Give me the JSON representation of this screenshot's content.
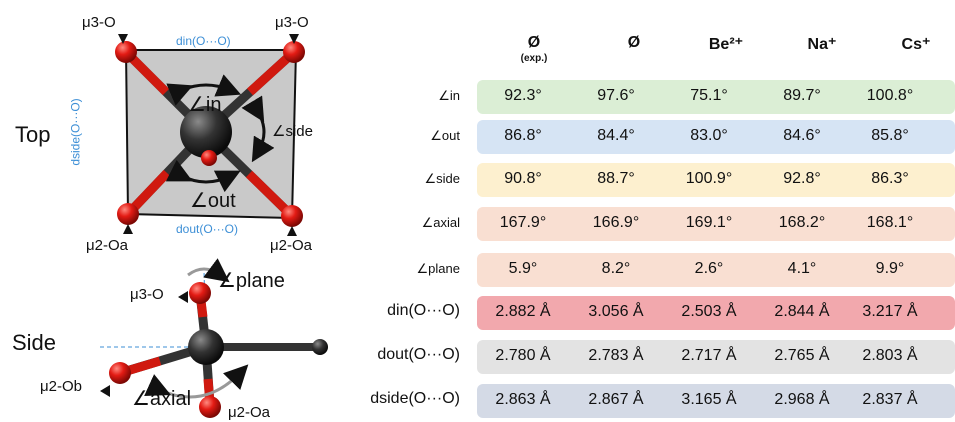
{
  "views": {
    "top": "Top",
    "side": "Side"
  },
  "top_diagram": {
    "mu3_left": "μ3-O",
    "mu3_right": "μ3-O",
    "mu2_left": "μ2-Oa",
    "mu2_right": "μ2-Oa",
    "d_in_label": "din(O···O)",
    "d_out_label": "dout(O···O)",
    "d_side_label": "dside(O···O)",
    "angle_in": "∠in",
    "angle_out": "∠out",
    "angle_side": "∠side"
  },
  "side_diagram": {
    "mu3": "μ3-O",
    "mu2b": "μ2-Ob",
    "mu2a": "μ2-Oa",
    "angle_plane": "∠plane",
    "angle_axial": "∠axial"
  },
  "table": {
    "columns": [
      {
        "label": "Ø",
        "sub": "(exp.)"
      },
      {
        "label": "Ø",
        "sub": ""
      },
      {
        "label": "Be²⁺",
        "sub": ""
      },
      {
        "label": "Na⁺",
        "sub": ""
      },
      {
        "label": "Cs⁺",
        "sub": ""
      }
    ],
    "rows": [
      {
        "label": "∠in",
        "color": "#dbeed5",
        "values": [
          "92.3°",
          "97.6°",
          "75.1°",
          "89.7°",
          "100.8°"
        ]
      },
      {
        "label": "∠out",
        "color": "#d6e4f4",
        "values": [
          "86.8°",
          "84.4°",
          "83.0°",
          "84.6°",
          "85.8°"
        ]
      },
      {
        "label": "∠side",
        "color": "#fdf0cf",
        "values": [
          "90.8°",
          "88.7°",
          "100.9°",
          "92.8°",
          "86.3°"
        ]
      },
      {
        "label": "∠axial",
        "color": "#f9dfd2",
        "values": [
          "167.9°",
          "166.9°",
          "169.1°",
          "168.2°",
          "168.1°"
        ]
      },
      {
        "label": "∠plane",
        "color": "#f9dfd2",
        "values": [
          "5.9°",
          "8.2°",
          "2.6°",
          "4.1°",
          "9.9°"
        ]
      },
      {
        "label": "din(O···O)",
        "color": "#f2a8ad",
        "values": [
          "2.882 Å",
          "3.056 Å",
          "2.503 Å",
          "2.844 Å",
          "3.217 Å"
        ]
      },
      {
        "label": "dout(O···O)",
        "color": "#e3e3e3",
        "values": [
          "2.780 Å",
          "2.783 Å",
          "2.717 Å",
          "2.765 Å",
          "2.803 Å"
        ]
      },
      {
        "label": "dside(O···O)",
        "color": "#d4dae6",
        "values": [
          "2.863 Å",
          "2.867 Å",
          "3.165 Å",
          "2.968 Å",
          "2.837 Å"
        ]
      }
    ]
  }
}
